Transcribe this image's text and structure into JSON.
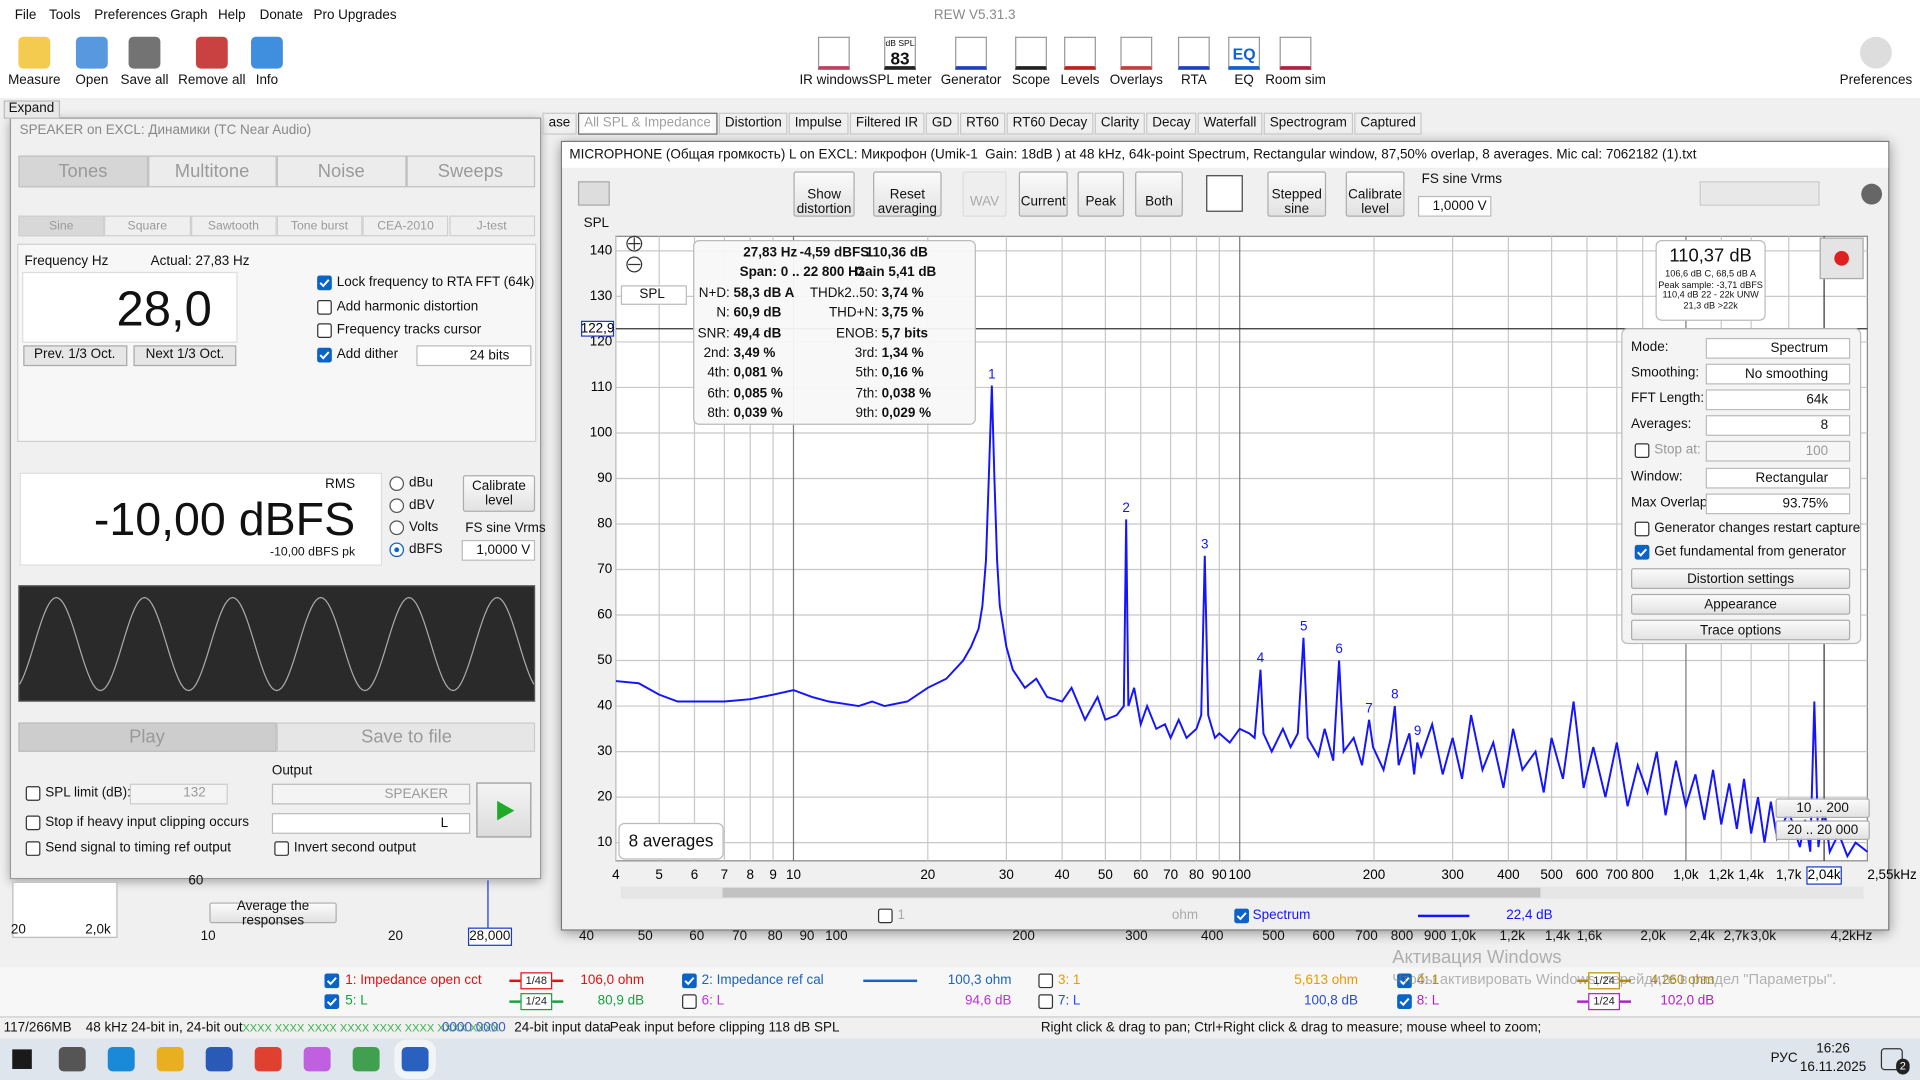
{
  "app": {
    "title": "REW V5.31.3",
    "menu": [
      "File",
      "Tools",
      "Preferences",
      "Graph",
      "Help",
      "Donate",
      "Pro Upgrades"
    ]
  },
  "toolbar": {
    "left": [
      "Measure",
      "Open",
      "Save all",
      "Remove all",
      "Info"
    ],
    "center": [
      "IR windows",
      "SPL meter",
      "Generator",
      "Scope",
      "Levels",
      "Overlays",
      "RTA",
      "EQ",
      "Room sim"
    ],
    "spl_badge": {
      "unit": "dB SPL",
      "value": "83"
    },
    "eq_badge": "EQ",
    "right": "Preferences",
    "expand": "Expand"
  },
  "tabs": {
    "items": [
      "ase",
      "All SPL & Impedance",
      "Distortion",
      "Impulse",
      "Filtered IR",
      "GD",
      "RT60",
      "RT60 Decay",
      "Clarity",
      "Decay",
      "Waterfall",
      "Spectrogram",
      "Captured"
    ],
    "active": 1
  },
  "generator": {
    "title": "SPEAKER on EXCL: Динамики (TC Near Audio)",
    "tabs": [
      "Tones",
      "Multitone",
      "Noise",
      "Sweeps"
    ],
    "subtabs": [
      "Sine",
      "Square",
      "Sawtooth",
      "Tone burst",
      "CEA-2010",
      "J-test"
    ],
    "freq_label": "Frequency Hz",
    "actual": "Actual: 27,83 Hz",
    "freq_value": "28,0",
    "buttons": [
      "Prev. 1/3 Oct.",
      "Next 1/3 Oct."
    ],
    "checks": [
      {
        "label": "Lock frequency to RTA FFT (64k)",
        "checked": true
      },
      {
        "label": "Add harmonic distortion",
        "checked": false
      },
      {
        "label": "Frequency tracks cursor",
        "checked": false
      },
      {
        "label": "Add dither",
        "checked": true
      }
    ],
    "dither_bits": "24 bits",
    "rms": "RMS",
    "level": "-10,00 dBFS",
    "level_pk": "-10,00 dBFS pk",
    "units": [
      "dBu",
      "dBV",
      "Volts",
      "dBFS"
    ],
    "unit_selected": 3,
    "calibrate": "Calibrate level",
    "fs_label": "FS sine Vrms",
    "fs_value": "1,0000 V",
    "play": "Play",
    "save": "Save to file",
    "spl_limit": {
      "label": "SPL limit (dB):",
      "value": "132",
      "checked": false
    },
    "stop_clip": {
      "label": "Stop if heavy input clipping occurs",
      "checked": false
    },
    "send_timing": {
      "label": "Send signal to timing ref output",
      "checked": false
    },
    "output_label": "Output",
    "output_device": "SPEAKER",
    "output_channel": "L",
    "invert": {
      "label": "Invert second output",
      "checked": false
    }
  },
  "background": {
    "button": "Average the responses",
    "axis": [
      "10",
      "20",
      "28,000",
      "40",
      "50",
      "60",
      "70",
      "80",
      "90",
      "100",
      "200",
      "300",
      "400",
      "500",
      "600",
      "700",
      "800",
      "900",
      "1,0k",
      "1,2k",
      "1,4k",
      "1,6k",
      "2,0k",
      "2,4k",
      "2,7k",
      "3,0k",
      "4,2kHz"
    ],
    "mini_axis": [
      "60",
      "20",
      "2,0k"
    ]
  },
  "rta": {
    "title": "MICROPHONE (Общая громкость) L on EXCL: Микрофон (Umik-1  Gain: 18dB ) at 48 kHz, 64k-point Spectrum, Rectangular window, 87,50% overlap, 8 averages. Mic cal: 7062182 (1).txt",
    "buttons": [
      "Show distortion",
      "Reset averaging",
      "WAV",
      "Current",
      "Peak",
      "Both",
      "Stepped sine",
      "Calibrate level"
    ],
    "fs_label": "FS sine Vrms",
    "fs_value": "1,0000 V",
    "axis_select": "SPL",
    "averages_badge": "8 averages",
    "ranges": [
      "10 .. 200",
      "20 .. 20 000"
    ],
    "stats": {
      "header": [
        "27,83 Hz",
        "-4,59 dBFS",
        "110,36 dB"
      ],
      "span": [
        "Span: 0 .. 22 800 Hz",
        "Gain 5,41 dB"
      ],
      "rows": [
        [
          "N+D:",
          "58,3 dB A",
          "THDk2..50:",
          "3,74 %"
        ],
        [
          "N:",
          "60,9 dB",
          "THD+N:",
          "3,75 %"
        ],
        [
          "SNR:",
          "49,4 dB",
          "ENOB:",
          "5,7 bits"
        ],
        [
          "2nd:",
          "3,49 %",
          "3rd:",
          "1,34 %"
        ],
        [
          "4th:",
          "0,081 %",
          "5th:",
          "0,16 %"
        ],
        [
          "6th:",
          "0,085 %",
          "7th:",
          "0,038 %"
        ],
        [
          "8th:",
          "0,039 %",
          "9th:",
          "0,029 %"
        ]
      ]
    },
    "level": {
      "main": "110,37 dB",
      "lines": [
        "106,6 dB C, 68,5 dB A",
        "Peak sample: -3,71 dBFS",
        "110,4 dB 22 - 22k UNW",
        "21,3 dB >22k"
      ]
    },
    "settings": {
      "rows": [
        [
          "Mode:",
          "Spectrum"
        ],
        [
          "Smoothing:",
          "No smoothing"
        ],
        [
          "FFT Length:",
          "64k"
        ],
        [
          "Averages:",
          "8"
        ],
        [
          "Stop at:",
          "100"
        ],
        [
          "Window:",
          "Rectangular"
        ],
        [
          "Max Overlap:",
          "93.75%"
        ]
      ],
      "checks": [
        {
          "label": "Generator changes restart capture",
          "checked": false
        },
        {
          "label": "Get fundamental from generator",
          "checked": true
        }
      ],
      "buttons": [
        "Distortion settings",
        "Appearance",
        "Trace options"
      ]
    },
    "legend": {
      "trace1": "1",
      "trace1_unit": "ohm",
      "trace1_checked": false,
      "spectrum_checked": true,
      "value": "22,4 dB"
    }
  },
  "chart_data": {
    "type": "line",
    "y_label": "SPL",
    "x_end_label": "2,55kHz",
    "log_x": true,
    "grid": true,
    "x": [
      4,
      4.5,
      5,
      5.5,
      6,
      7,
      8,
      9,
      10,
      11,
      12,
      13,
      14,
      15,
      16,
      18,
      20,
      22,
      24,
      25,
      26,
      26.5,
      27,
      27.4,
      27.83,
      28.2,
      28.6,
      29,
      30,
      31,
      33,
      35,
      37,
      40,
      42,
      45,
      48,
      50,
      53,
      55,
      55.66,
      56.3,
      58,
      60,
      62,
      65,
      68,
      70,
      73,
      76,
      80,
      82,
      83.5,
      85,
      88,
      90,
      95,
      100,
      105,
      108,
      111.3,
      113,
      118,
      125,
      130,
      135,
      139,
      142,
      150,
      155,
      162,
      167,
      171,
      180,
      188,
      195,
      199,
      210,
      218,
      222.6,
      227,
      240,
      246,
      250,
      255,
      270,
      285,
      300,
      315,
      330,
      350,
      370,
      390,
      410,
      430,
      460,
      480,
      500,
      530,
      560,
      590,
      620,
      660,
      700,
      740,
      780,
      820,
      860,
      900,
      950,
      1000,
      1050,
      1100,
      1150,
      1200,
      1250,
      1300,
      1350,
      1400,
      1450,
      1500,
      1550,
      1600,
      1700,
      1800,
      1850,
      1900,
      1940,
      1980,
      2040,
      2100,
      2200,
      2300,
      2400,
      2550
    ],
    "series": [
      {
        "name": "Spectrum",
        "color": "#1414ff",
        "values": [
          45.5,
          45,
          42.5,
          41,
          41,
          41,
          41.5,
          42.5,
          43.5,
          42,
          41,
          40.5,
          40,
          41,
          40,
          41,
          44,
          46,
          50,
          53,
          57,
          62,
          72,
          90,
          110.4,
          90,
          72,
          62,
          53,
          48,
          44,
          46,
          42,
          41,
          44,
          37,
          42,
          37,
          38,
          40,
          81,
          40,
          44,
          36,
          40,
          35,
          36,
          33,
          37,
          33,
          35,
          38,
          73,
          38,
          33,
          34,
          32,
          35,
          34,
          33,
          48,
          34,
          30,
          35,
          31,
          34,
          55,
          33,
          29,
          35,
          28,
          50,
          30,
          33,
          27,
          37,
          31,
          26,
          33,
          40,
          27,
          34,
          25,
          32,
          29,
          36,
          25,
          33,
          24,
          38,
          26,
          32,
          22,
          35,
          26,
          30,
          21,
          33,
          24,
          41,
          22,
          31,
          20,
          32,
          18,
          27,
          21,
          30,
          16,
          28,
          18,
          25,
          15,
          26,
          14,
          23,
          13,
          24,
          12,
          20,
          10,
          19,
          11,
          17,
          9,
          15,
          8,
          41,
          9,
          18,
          8,
          12,
          7,
          10,
          8
        ]
      }
    ],
    "harmonics": {
      "labels": [
        1,
        2,
        3,
        4,
        5,
        6,
        7,
        8,
        9
      ],
      "freq": [
        27.83,
        55.66,
        83.49,
        111.32,
        139.15,
        166.98,
        194.81,
        222.64,
        250.47
      ],
      "level": [
        110.36,
        81,
        73,
        48,
        55,
        50,
        37,
        40,
        32
      ]
    },
    "cursor": {
      "x": 2040,
      "x_label": "2,04k",
      "y": 122.9,
      "y_label": "122,9"
    },
    "xlim": [
      4,
      2550
    ],
    "ylim": [
      6,
      143.2
    ],
    "xticks": [
      4,
      5,
      6,
      7,
      8,
      9,
      10,
      20,
      30,
      40,
      50,
      60,
      70,
      80,
      90,
      100,
      200,
      300,
      400,
      500,
      600,
      700,
      800,
      {
        "value": 1000,
        "label": "1,0k"
      },
      {
        "value": 1200,
        "label": "1,2k"
      },
      {
        "value": 1400,
        "label": "1,4k"
      },
      {
        "value": 1700,
        "label": "1,7k"
      }
    ],
    "yticks": [
      10,
      20,
      30,
      40,
      50,
      60,
      70,
      80,
      90,
      100,
      110,
      120,
      130,
      140
    ]
  },
  "legend": [
    {
      "label": "1: Impedance open cct",
      "value": "106,0 ohm",
      "color": "#e01010",
      "checked": true,
      "smoothing": "1/48"
    },
    {
      "label": "2: Impedance ref cal",
      "value": "100,3 ohm",
      "color": "#1a62c0",
      "checked": true
    },
    {
      "label": "3: 1",
      "value": "5,613 ohm",
      "color": "#e89a00",
      "checked": false
    },
    {
      "label": "4: 1",
      "value": "4,260 ohm",
      "color": "#b89000",
      "checked": true,
      "smoothing": "1/24"
    },
    {
      "label": "5: L",
      "value": "80,9 dB",
      "color": "#16a040",
      "checked": true,
      "smoothing": "1/24"
    },
    {
      "label": "6: L",
      "value": "94,6 dB",
      "color": "#c030e0",
      "checked": false
    },
    {
      "label": "7: L",
      "value": "100,8 dB",
      "color": "#2a4ad8",
      "checked": false
    },
    {
      "label": "8: L",
      "value": "102,0 dB",
      "color": "#b020c8",
      "checked": true,
      "smoothing": "1/24"
    }
  ],
  "watermark": [
    "Активация Windows",
    "Чтобы активировать Windows, перейдите в раздел \"Параметры\"."
  ],
  "status": [
    "117/266MB",
    "48 kHz",
    "24-bit in, 24-bit out",
    "XXXX XXXX XXXX XXXX XXXX XXXX XXXX XXXX",
    "0000 0000",
    "24-bit input data",
    "Peak input before clipping 118 dB SPL",
    "Right click & drag to pan; Ctrl+Right click & drag to measure; mouse wheel to zoom;"
  ],
  "taskbar": {
    "language": "РУС",
    "time": "16:26",
    "date": "16.11.2025",
    "badge": "2"
  }
}
